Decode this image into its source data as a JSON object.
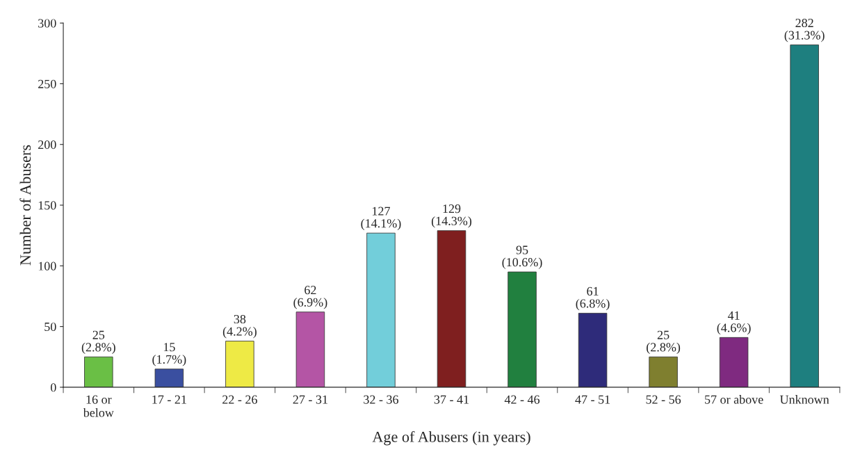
{
  "chart_data": {
    "type": "bar",
    "xlabel": "Age of Abusers (in years)",
    "ylabel": "Number of Abusers",
    "categories": [
      "16 or\nbelow",
      "17 - 21",
      "22 - 26",
      "27 - 31",
      "32 - 36",
      "37 - 41",
      "42 - 46",
      "47 - 51",
      "52 - 56",
      "57 or above",
      "Unknown"
    ],
    "values": [
      25,
      15,
      38,
      62,
      127,
      129,
      95,
      61,
      25,
      41,
      282
    ],
    "colors": [
      "#6abf45",
      "#3a4fa0",
      "#eeea45",
      "#b455a5",
      "#72ceda",
      "#7f1f1f",
      "#21803f",
      "#2e2b7a",
      "#7f7f2f",
      "#7f2a80",
      "#1e7f7f"
    ],
    "value_labels": [
      "25\n(2.8%)",
      "15\n(1.7%)",
      "38\n(4.2%)",
      "62\n(6.9%)",
      "127\n(14.1%)",
      "129\n(14.3%)",
      "95\n(10.6%)",
      "61\n(6.8%)",
      "25\n(2.8%)",
      "41\n(4.6%)",
      "282\n(31.3%)"
    ],
    "ylim": [
      0,
      300
    ],
    "yticks": [
      0,
      50,
      100,
      150,
      200,
      250,
      300
    ],
    "grid": false,
    "legend": false
  }
}
